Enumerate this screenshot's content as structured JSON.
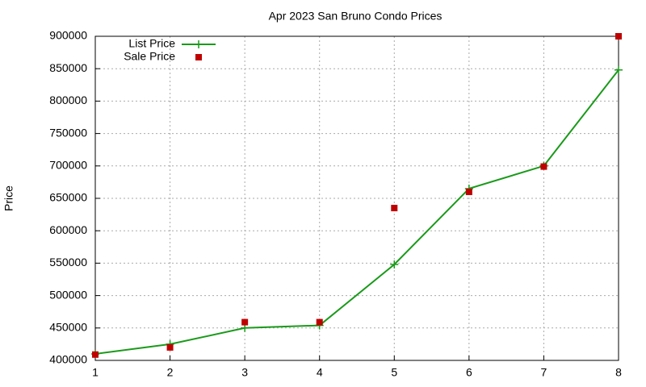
{
  "chart_data": {
    "type": "line",
    "title": "Apr 2023 San Bruno Condo Prices",
    "y_label": "Price",
    "x": [
      1,
      2,
      3,
      4,
      5,
      6,
      7,
      8
    ],
    "xlim": [
      1,
      8
    ],
    "xticks": [
      1,
      2,
      3,
      4,
      5,
      6,
      7,
      8
    ],
    "ylim": [
      400000,
      900000
    ],
    "yticks": [
      400000,
      450000,
      500000,
      550000,
      600000,
      650000,
      700000,
      750000,
      800000,
      850000,
      900000
    ],
    "grid": true,
    "legend": "top-left",
    "series": [
      {
        "name": "List Price",
        "color": "#1a9a1a",
        "line": true,
        "marker": "plus",
        "values": [
          410000,
          425000,
          450000,
          454000,
          548000,
          665000,
          700000,
          848000
        ]
      },
      {
        "name": "Sale Price",
        "color": "#c00000",
        "line": false,
        "marker": "square",
        "values": [
          409000,
          420000,
          459000,
          459000,
          635000,
          660000,
          699000,
          900000
        ]
      }
    ]
  }
}
